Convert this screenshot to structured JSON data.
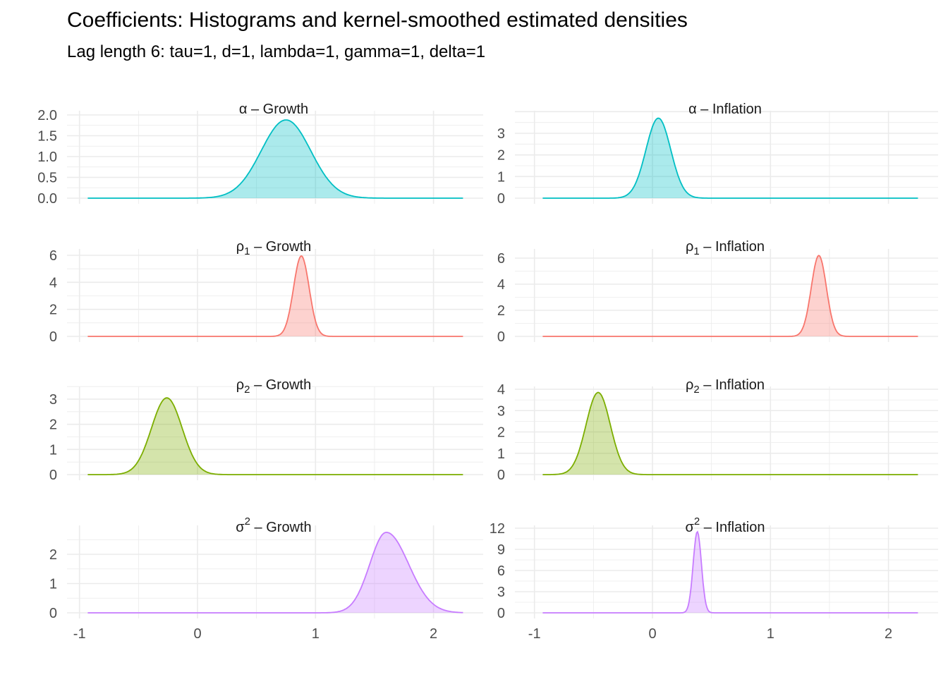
{
  "chart_data": {
    "type": "area",
    "title": "Coefficients: Histograms and kernel-smoothed estimated densities",
    "subtitle": "Lag length 6: tau=1, d=1, lambda=1, gamma=1, delta=1",
    "xlabel": "",
    "ylabel": "",
    "grid": true,
    "legend": "none",
    "layout": "4 rows x 2 columns facets",
    "xlim": [
      -1,
      2.25
    ],
    "x_ticks": [
      -1,
      0,
      1,
      2
    ],
    "x_tick_labels": [
      "-1",
      "0",
      "1",
      "2"
    ],
    "x_support": [
      -0.93,
      2.25
    ],
    "colors": {
      "alpha": "#00BFC4",
      "rho1": "#F8766D",
      "rho2": "#7CAE00",
      "sigma2": "#C77CFF"
    },
    "panels": [
      {
        "param": "α",
        "sub": "",
        "sup": "",
        "series": "Growth",
        "color_key": "alpha",
        "y_ticks": [
          0,
          0.5,
          1,
          1.5,
          2
        ],
        "y_tick_labels": [
          "0.0",
          "0.5",
          "1.0",
          "1.5",
          "2.0"
        ],
        "ylim": [
          0,
          2.0
        ],
        "mode": 0.75,
        "peak_density": 1.88,
        "sd": 0.21,
        "skew": 0
      },
      {
        "param": "α",
        "sub": "",
        "sup": "",
        "series": "Inflation",
        "color_key": "alpha",
        "y_ticks": [
          0,
          1,
          2,
          3
        ],
        "y_tick_labels": [
          "0",
          "1",
          "2",
          "3"
        ],
        "ylim": [
          0,
          3.8
        ],
        "mode": 0.05,
        "peak_density": 3.7,
        "sd": 0.105,
        "skew": 0
      },
      {
        "param": "ρ",
        "sub": "1",
        "sup": "",
        "series": "Growth",
        "color_key": "rho1",
        "y_ticks": [
          0,
          2,
          4,
          6
        ],
        "y_tick_labels": [
          "0",
          "2",
          "4",
          "6"
        ],
        "ylim": [
          0,
          6.0
        ],
        "mode": 0.88,
        "peak_density": 5.95,
        "sd": 0.066,
        "skew": 0
      },
      {
        "param": "ρ",
        "sub": "1",
        "sup": "",
        "series": "Inflation",
        "color_key": "rho1",
        "y_ticks": [
          0,
          2,
          4,
          6
        ],
        "y_tick_labels": [
          "0",
          "2",
          "4",
          "6"
        ],
        "ylim": [
          0,
          6.3
        ],
        "mode": 1.41,
        "peak_density": 6.2,
        "sd": 0.064,
        "skew": 0
      },
      {
        "param": "ρ",
        "sub": "2",
        "sup": "",
        "series": "Growth",
        "color_key": "rho2",
        "y_ticks": [
          0,
          1,
          2,
          3
        ],
        "y_tick_labels": [
          "0",
          "1",
          "2",
          "3"
        ],
        "ylim": [
          0,
          3.2
        ],
        "mode": -0.26,
        "peak_density": 3.05,
        "sd": 0.13,
        "skew": 0
      },
      {
        "param": "ρ",
        "sub": "2",
        "sup": "",
        "series": "Inflation",
        "color_key": "rho2",
        "y_ticks": [
          0,
          1,
          2,
          3,
          4
        ],
        "y_tick_labels": [
          "0",
          "1",
          "2",
          "3",
          "4"
        ],
        "ylim": [
          0,
          4.0
        ],
        "mode": -0.46,
        "peak_density": 3.85,
        "sd": 0.103,
        "skew": 0
      },
      {
        "param": "σ",
        "sub": "",
        "sup": "2",
        "series": "Growth",
        "color_key": "sigma2",
        "y_ticks": [
          0,
          1,
          2
        ],
        "y_tick_labels": [
          "0",
          "1",
          "2"
        ],
        "ylim": [
          0,
          2.9
        ],
        "mode": 1.6,
        "peak_density": 2.75,
        "sd": 0.14,
        "skew": 0.35
      },
      {
        "param": "σ",
        "sub": "",
        "sup": "2",
        "series": "Inflation",
        "color_key": "sigma2",
        "y_ticks": [
          0,
          3,
          6,
          9,
          12
        ],
        "y_tick_labels": [
          "0",
          "3",
          "6",
          "9",
          "12"
        ],
        "ylim": [
          0,
          12.0
        ],
        "mode": 0.38,
        "peak_density": 11.5,
        "sd": 0.035,
        "skew": 0
      }
    ]
  }
}
